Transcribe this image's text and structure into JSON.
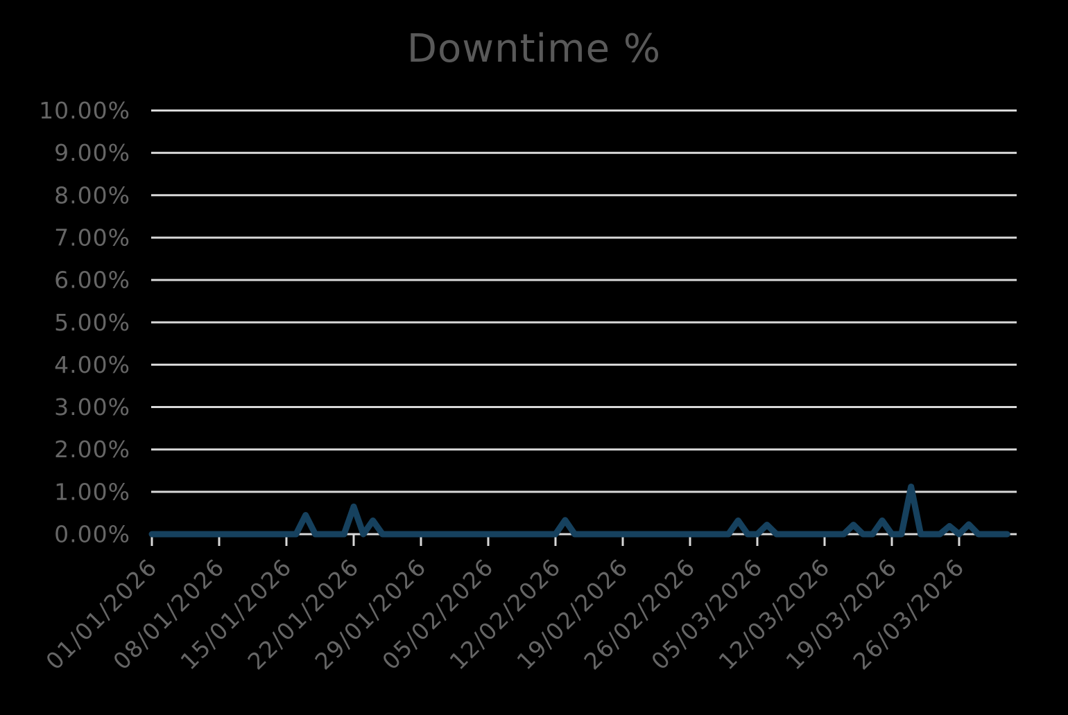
{
  "title": "Downtime %",
  "colors": {
    "background": "#000000",
    "gridline": "#d9d9d9",
    "tick": "#d9d9d9",
    "series_line": "#16415e",
    "title_text": "#595959",
    "axis_text": "#666666"
  },
  "chart_data": {
    "type": "line",
    "title": "Downtime %",
    "xlabel": "",
    "ylabel": "",
    "ylim": [
      0,
      10
    ],
    "grid": "horizontal",
    "legend": "none",
    "y_tick_labels": [
      "10.00%",
      "9.00%",
      "8.00%",
      "7.00%",
      "6.00%",
      "5.00%",
      "4.00%",
      "3.00%",
      "2.00%",
      "1.00%",
      "0.00%"
    ],
    "y_tick_values": [
      10,
      9,
      8,
      7,
      6,
      5,
      4,
      3,
      2,
      1,
      0
    ],
    "x_tick_labels": [
      "01/01/2026",
      "08/01/2026",
      "15/01/2026",
      "22/01/2026",
      "29/01/2026",
      "05/02/2026",
      "12/02/2026",
      "19/02/2026",
      "26/02/2026",
      "05/03/2026",
      "12/03/2026",
      "19/03/2026",
      "26/03/2026"
    ],
    "x_tick_interval_days": 7,
    "series_name": "Downtime %",
    "x": [
      "01/01/2026",
      "02/01/2026",
      "03/01/2026",
      "04/01/2026",
      "05/01/2026",
      "06/01/2026",
      "07/01/2026",
      "08/01/2026",
      "09/01/2026",
      "10/01/2026",
      "11/01/2026",
      "12/01/2026",
      "13/01/2026",
      "14/01/2026",
      "15/01/2026",
      "16/01/2026",
      "17/01/2026",
      "18/01/2026",
      "19/01/2026",
      "20/01/2026",
      "21/01/2026",
      "22/01/2026",
      "23/01/2026",
      "24/01/2026",
      "25/01/2026",
      "26/01/2026",
      "27/01/2026",
      "28/01/2026",
      "29/01/2026",
      "30/01/2026",
      "31/01/2026",
      "01/02/2026",
      "02/02/2026",
      "03/02/2026",
      "04/02/2026",
      "05/02/2026",
      "06/02/2026",
      "07/02/2026",
      "08/02/2026",
      "09/02/2026",
      "10/02/2026",
      "11/02/2026",
      "12/02/2026",
      "13/02/2026",
      "14/02/2026",
      "15/02/2026",
      "16/02/2026",
      "17/02/2026",
      "18/02/2026",
      "19/02/2026",
      "20/02/2026",
      "21/02/2026",
      "22/02/2026",
      "23/02/2026",
      "24/02/2026",
      "25/02/2026",
      "26/02/2026",
      "27/02/2026",
      "28/02/2026",
      "01/03/2026",
      "02/03/2026",
      "03/03/2026",
      "04/03/2026",
      "05/03/2026",
      "06/03/2026",
      "07/03/2026",
      "08/03/2026",
      "09/03/2026",
      "10/03/2026",
      "11/03/2026",
      "12/03/2026",
      "13/03/2026",
      "14/03/2026",
      "15/03/2026",
      "16/03/2026",
      "17/03/2026",
      "18/03/2026",
      "19/03/2026",
      "20/03/2026",
      "21/03/2026",
      "22/03/2026",
      "23/03/2026",
      "24/03/2026",
      "25/03/2026",
      "26/03/2026",
      "27/03/2026",
      "28/03/2026",
      "29/03/2026",
      "30/03/2026",
      "31/03/2026"
    ],
    "values": [
      0,
      0,
      0,
      0,
      0,
      0,
      0,
      0,
      0,
      0,
      0,
      0,
      0,
      0,
      0,
      0,
      0.45,
      0,
      0,
      0,
      0,
      0.65,
      0,
      0.32,
      0,
      0,
      0,
      0,
      0,
      0,
      0,
      0,
      0,
      0,
      0,
      0,
      0,
      0,
      0,
      0,
      0,
      0,
      0,
      0.33,
      0,
      0,
      0,
      0,
      0,
      0,
      0,
      0,
      0,
      0,
      0,
      0,
      0,
      0,
      0,
      0,
      0,
      0.32,
      0,
      0,
      0.22,
      0,
      0,
      0,
      0,
      0,
      0,
      0,
      0,
      0.22,
      0,
      0,
      0.32,
      0,
      0,
      1.12,
      0,
      0,
      0,
      0.19,
      0,
      0.23,
      0,
      0,
      0,
      0
    ]
  }
}
